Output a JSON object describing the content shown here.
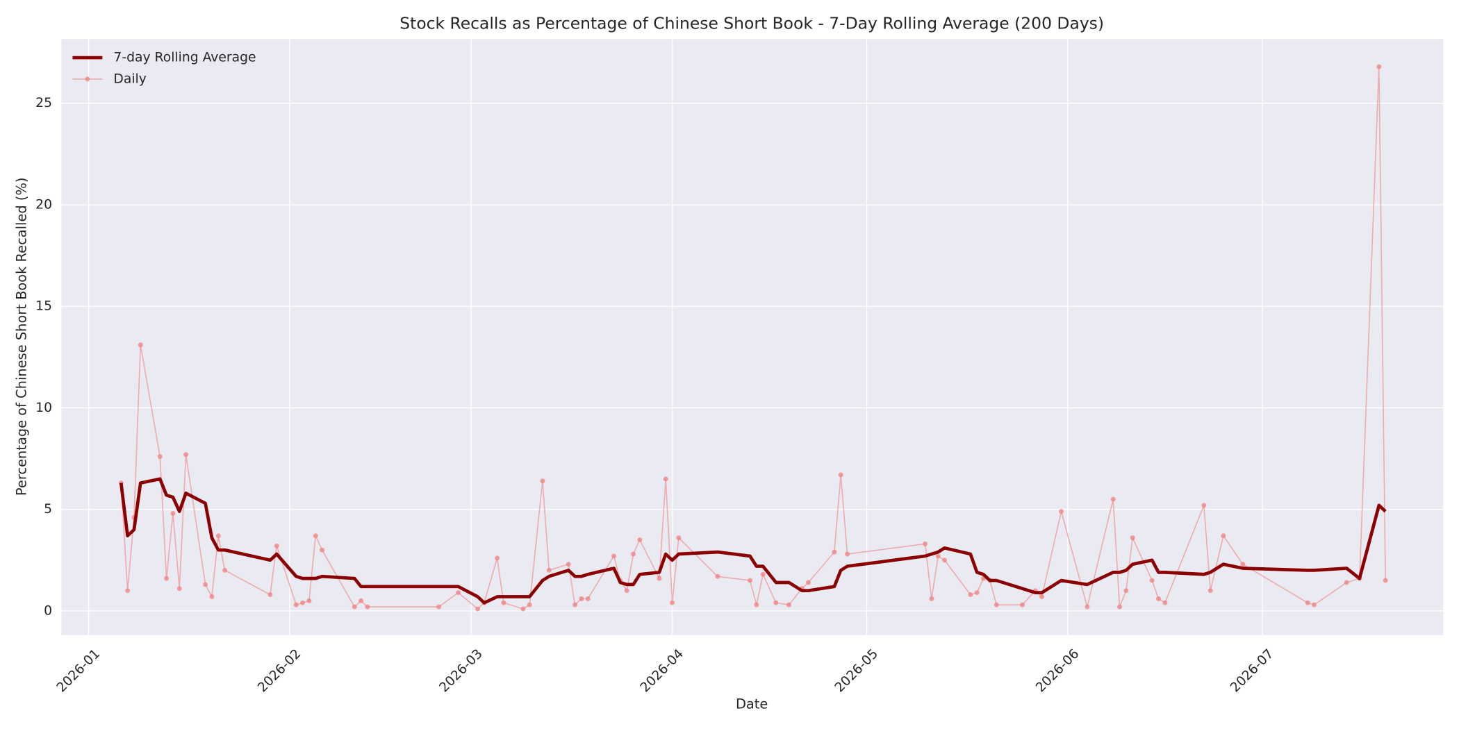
{
  "chart_data": {
    "type": "line",
    "title": "Stock Recalls as Percentage of Chinese Short Book - 7-Day Rolling Average (200 Days)",
    "x_label": "Date",
    "y_label": "Percentage of Chinese Short Book Recalled (%)",
    "xlim": [
      -4.2,
      208.9
    ],
    "ylim": [
      -1.19,
      28.16
    ],
    "xticks": [
      {
        "value": 0,
        "label": "2026-01"
      },
      {
        "value": 31,
        "label": "2026-02"
      },
      {
        "value": 59,
        "label": "2026-03"
      },
      {
        "value": 90,
        "label": "2026-04"
      },
      {
        "value": 120,
        "label": "2026-05"
      },
      {
        "value": 151,
        "label": "2026-06"
      },
      {
        "value": 181,
        "label": "2026-07"
      }
    ],
    "yticks": [
      0,
      5,
      10,
      15,
      20,
      25
    ],
    "grid": true,
    "legend": "upper-left",
    "x": [
      5,
      6,
      7,
      8,
      11,
      12,
      13,
      14,
      15,
      18,
      19,
      20,
      21,
      28,
      29,
      32,
      33,
      34,
      35,
      36,
      41,
      42,
      43,
      54,
      57,
      60,
      61,
      63,
      64,
      67,
      68,
      70,
      71,
      74,
      75,
      76,
      77,
      81,
      82,
      83,
      84,
      85,
      88,
      89,
      90,
      91,
      97,
      102,
      103,
      104,
      106,
      108,
      110,
      111,
      115,
      116,
      117,
      129,
      130,
      131,
      132,
      136,
      137,
      138,
      139,
      140,
      144,
      146,
      147,
      150,
      154,
      158,
      159,
      160,
      161,
      164,
      165,
      166,
      172,
      173,
      175,
      178,
      188,
      189,
      194,
      196,
      199,
      200
    ],
    "series": [
      {
        "name": "7-day Rolling Average",
        "color": "#8b0000",
        "markers": false,
        "values": [
          6.3,
          3.7,
          4.0,
          6.3,
          6.5,
          5.7,
          5.6,
          4.9,
          5.8,
          5.3,
          3.6,
          3.0,
          3.0,
          2.5,
          2.8,
          1.7,
          1.6,
          1.6,
          1.6,
          1.7,
          1.6,
          1.2,
          1.2,
          1.2,
          1.2,
          0.7,
          0.4,
          0.7,
          0.7,
          0.7,
          0.7,
          1.5,
          1.7,
          2.0,
          1.7,
          1.7,
          1.8,
          2.1,
          1.4,
          1.3,
          1.3,
          1.8,
          1.9,
          2.8,
          2.5,
          2.8,
          2.9,
          2.7,
          2.2,
          2.2,
          1.4,
          1.4,
          1.0,
          1.0,
          1.2,
          2.0,
          2.2,
          2.7,
          2.8,
          2.9,
          3.1,
          2.8,
          1.9,
          1.8,
          1.5,
          1.5,
          1.1,
          0.9,
          0.9,
          1.5,
          1.3,
          1.9,
          1.9,
          2.0,
          2.3,
          2.5,
          1.9,
          1.9,
          1.8,
          1.9,
          2.3,
          2.1,
          2.0,
          2.0,
          2.1,
          1.6,
          5.2,
          4.9
        ]
      },
      {
        "name": "Daily",
        "color": "#f08080",
        "markers": true,
        "values": [
          6.3,
          1.0,
          4.6,
          13.1,
          7.6,
          1.6,
          4.8,
          1.1,
          7.7,
          1.3,
          0.7,
          3.7,
          2.0,
          0.8,
          3.2,
          0.3,
          0.4,
          0.5,
          3.7,
          3.0,
          0.2,
          0.5,
          0.2,
          0.2,
          0.9,
          0.1,
          0.4,
          2.6,
          0.4,
          0.1,
          0.3,
          6.4,
          2.0,
          2.3,
          0.3,
          0.6,
          0.6,
          2.7,
          1.5,
          1.0,
          2.8,
          3.5,
          1.6,
          6.5,
          0.4,
          3.6,
          1.7,
          1.5,
          0.3,
          1.8,
          0.4,
          0.3,
          1.1,
          1.4,
          2.9,
          6.7,
          2.8,
          3.3,
          0.6,
          2.7,
          2.5,
          0.8,
          0.9,
          1.6,
          1.5,
          0.3,
          0.3,
          1.0,
          0.7,
          4.9,
          0.2,
          5.5,
          0.2,
          1.0,
          3.6,
          1.5,
          0.6,
          0.4,
          5.2,
          1.0,
          3.7,
          2.3,
          0.4,
          0.3,
          1.4,
          1.6,
          26.8,
          1.5
        ]
      }
    ]
  }
}
